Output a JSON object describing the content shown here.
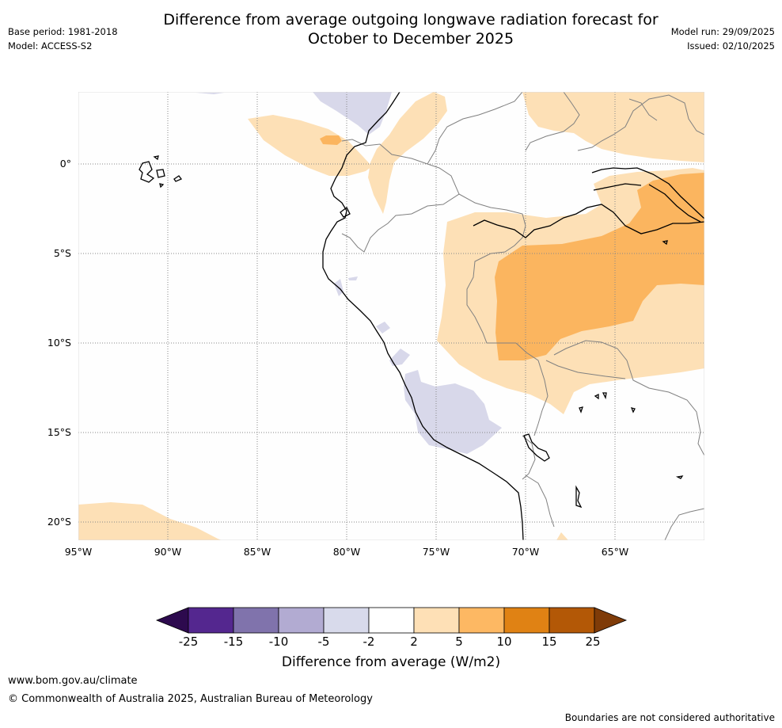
{
  "title_line1": "Difference from average outgoing longwave radiation forecast for",
  "title_line2": "October to December 2025",
  "base_period": "Base period: 1981-2018",
  "model": "Model: ACCESS-S2",
  "model_run": "Model run: 29/09/2025",
  "issued": "Issued: 02/10/2025",
  "map": {
    "lat_labels": [
      "0°",
      "5°S",
      "10°S",
      "15°S",
      "20°S"
    ],
    "lon_labels": [
      "95°W",
      "90°W",
      "85°W",
      "80°W",
      "75°W",
      "70°W",
      "65°W"
    ],
    "colors": {
      "purple_light": "#d8d8ea",
      "orange_light": "#fde0b6",
      "orange_mid": "#fbb55f",
      "coast": "#000000",
      "border": "#808080",
      "grid": "#888888"
    }
  },
  "colorbar": {
    "ticks": [
      "-25",
      "-15",
      "-10",
      "-5",
      "-2",
      "2",
      "5",
      "10",
      "15",
      "25"
    ],
    "colors": [
      "#2d0a4e",
      "#54278f",
      "#8073ac",
      "#b2abd2",
      "#d8daeb",
      "#ffffff",
      "#fee0b6",
      "#fdb863",
      "#e08214",
      "#b35806",
      "#7f3b08"
    ],
    "title": "Difference from average (W/m2)"
  },
  "footer": {
    "url": "www.bom.gov.au/climate",
    "copyright": "© Commonwealth of Australia 2025, Australian Bureau of Meteorology",
    "disclaimer": "Boundaries are not considered authoritative"
  }
}
